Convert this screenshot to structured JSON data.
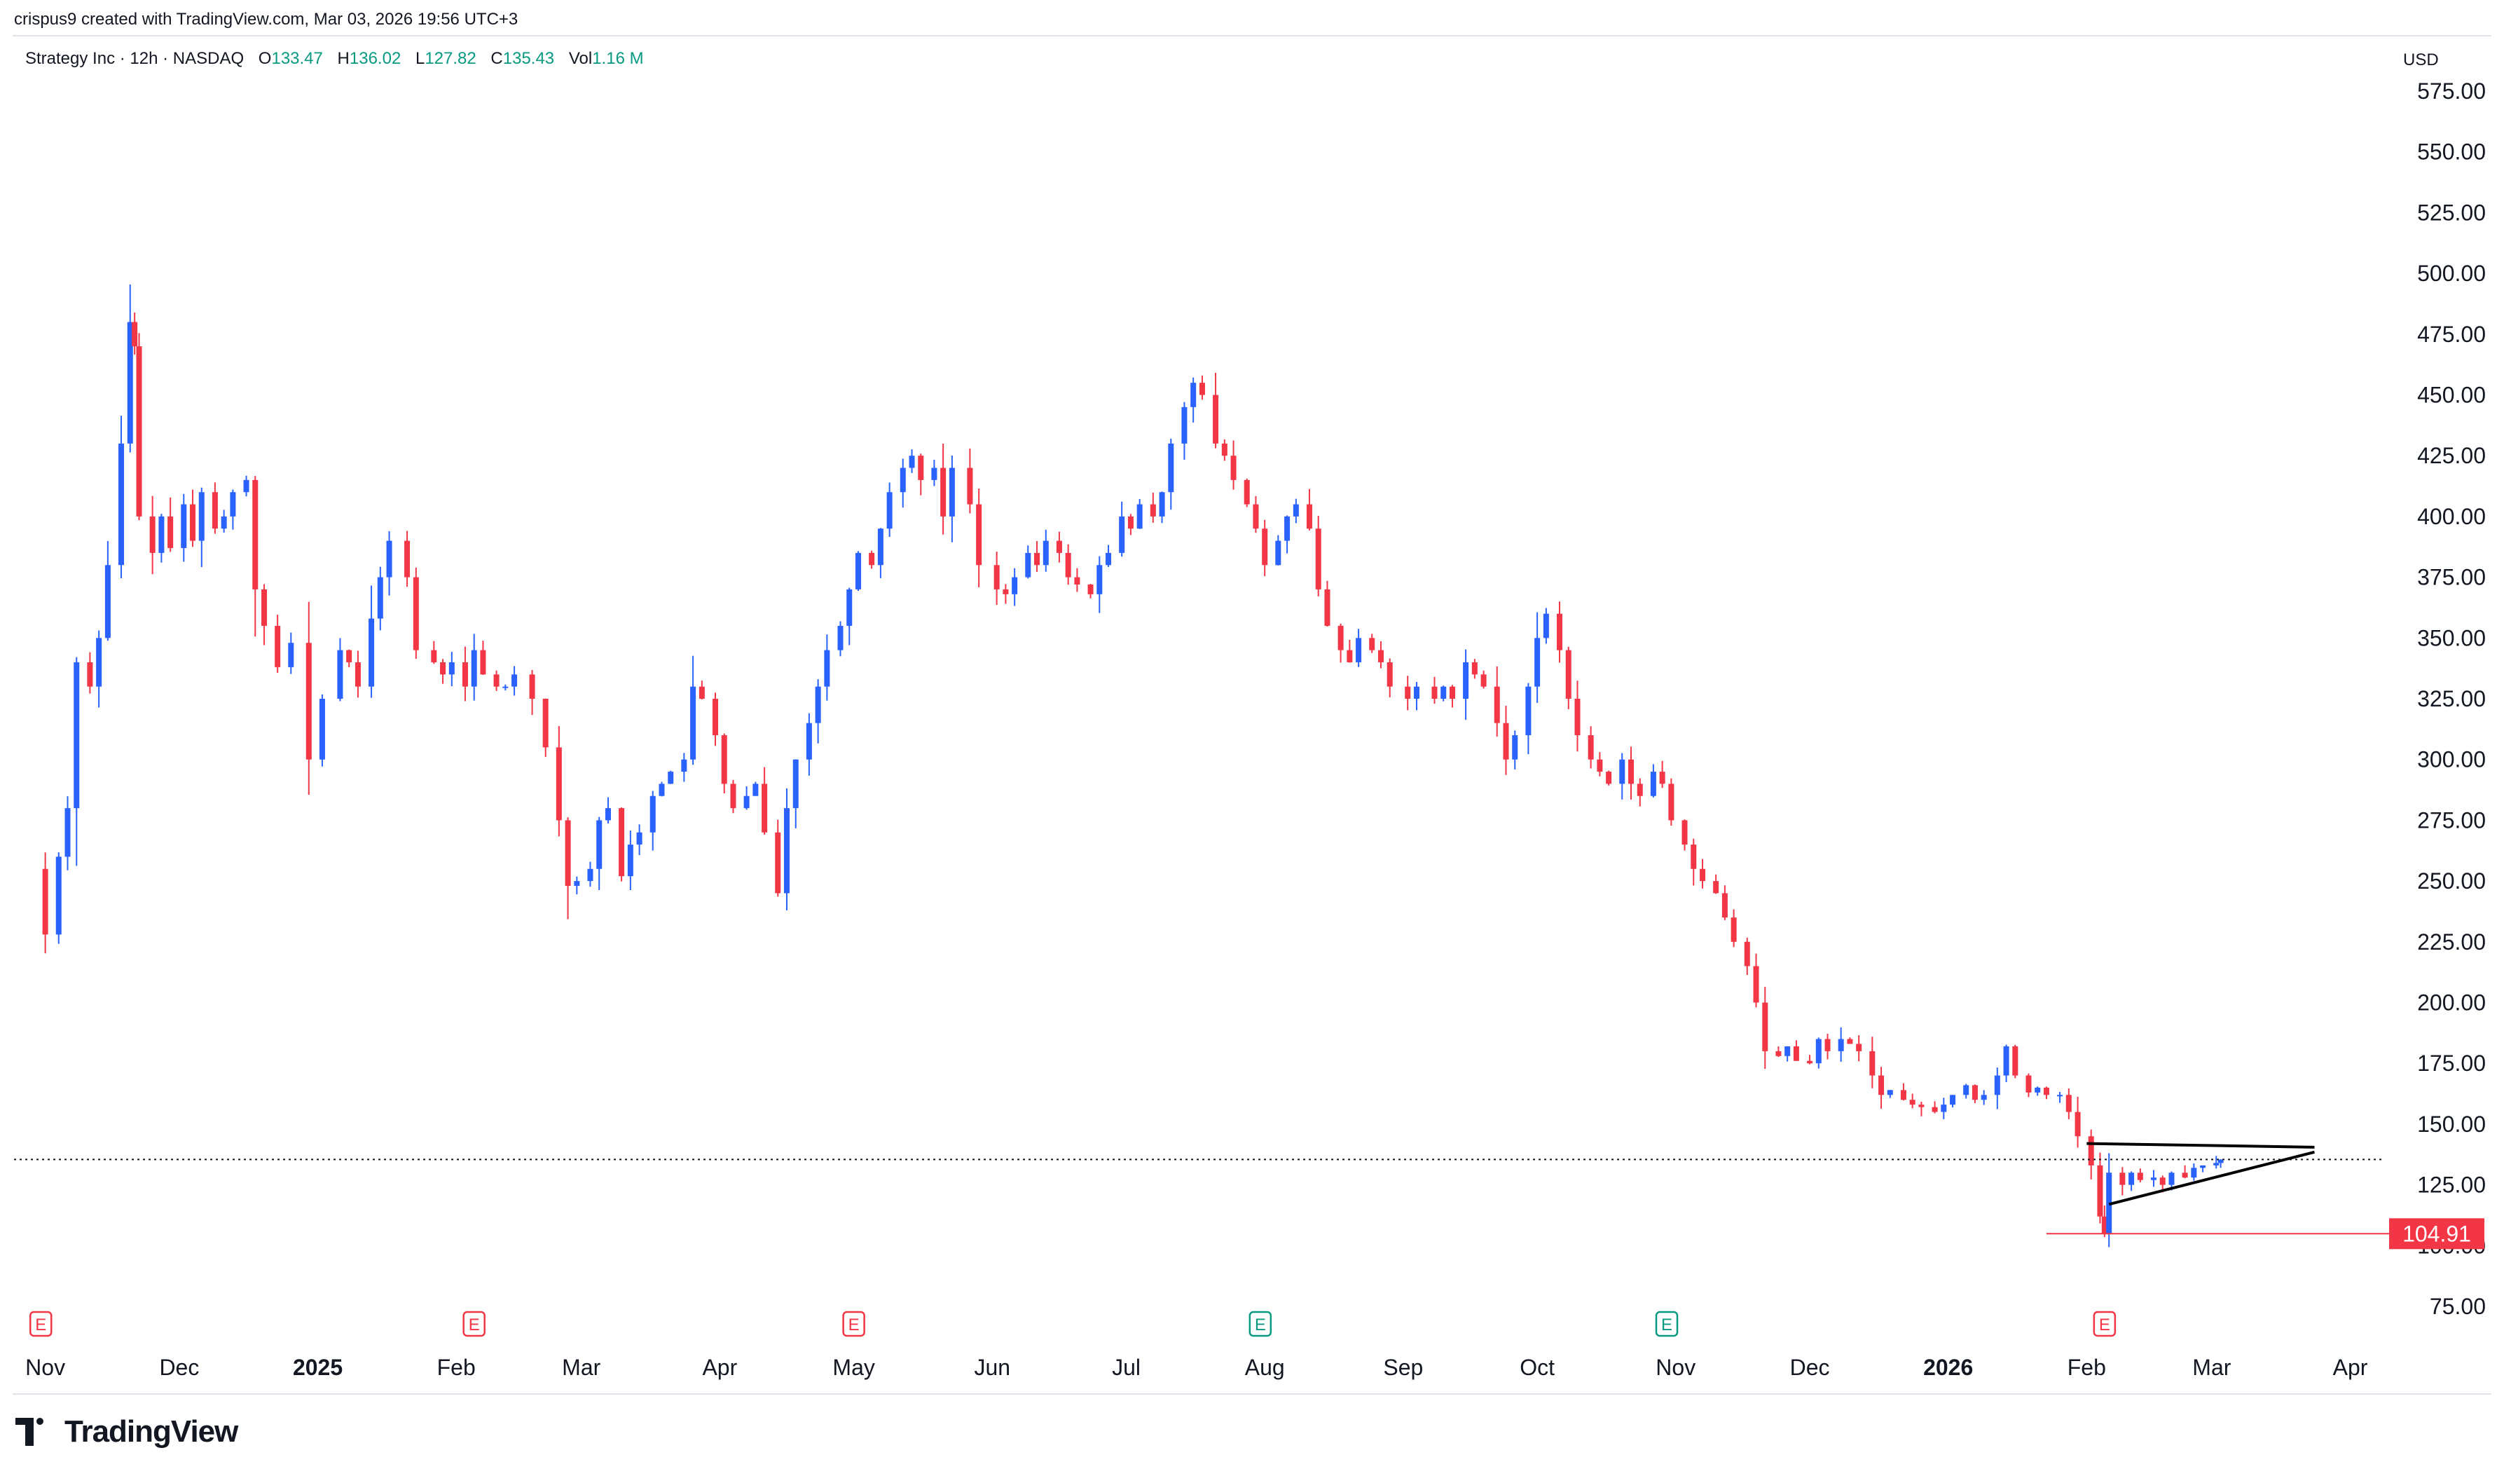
{
  "credit": "crispus9 created with TradingView.com, Mar 03, 2026 19:56 UTC+3",
  "legend": {
    "symbol": "Strategy Inc · 12h · NASDAQ",
    "o_label": "O",
    "o_value": "133.47",
    "h_label": "H",
    "h_value": "136.02",
    "l_label": "L",
    "l_value": "127.82",
    "c_label": "C",
    "c_value": "135.43",
    "vol_label": "Vol",
    "vol_value": "1.16 M"
  },
  "currency": "USD",
  "brand": "TradingView",
  "colors": {
    "up": "#2962ff",
    "down": "#f23645",
    "price_line": "#131722",
    "support": "#f23645"
  },
  "chart_data": {
    "type": "candlestick",
    "ylim": [
      65,
      585
    ],
    "y_ticks": [
      "575.00",
      "550.00",
      "525.00",
      "500.00",
      "475.00",
      "450.00",
      "425.00",
      "400.00",
      "375.00",
      "350.00",
      "325.00",
      "300.00",
      "275.00",
      "250.00",
      "225.00",
      "200.00",
      "175.00",
      "150.00",
      "125.00",
      "100.00",
      "75.00"
    ],
    "x_ticks": [
      {
        "label": "Nov",
        "date": "2024-11-01",
        "bold": false
      },
      {
        "label": "Dec",
        "date": "2024-12-01",
        "bold": false
      },
      {
        "label": "2025",
        "date": "2025-01-01",
        "bold": true
      },
      {
        "label": "Feb",
        "date": "2025-02-01",
        "bold": false
      },
      {
        "label": "Mar",
        "date": "2025-03-01",
        "bold": false
      },
      {
        "label": "Apr",
        "date": "2025-04-01",
        "bold": false
      },
      {
        "label": "May",
        "date": "2025-05-01",
        "bold": false
      },
      {
        "label": "Jun",
        "date": "2025-06-01",
        "bold": false
      },
      {
        "label": "Jul",
        "date": "2025-07-01",
        "bold": false
      },
      {
        "label": "Aug",
        "date": "2025-08-01",
        "bold": false
      },
      {
        "label": "Sep",
        "date": "2025-09-01",
        "bold": false
      },
      {
        "label": "Oct",
        "date": "2025-10-01",
        "bold": false
      },
      {
        "label": "Nov",
        "date": "2025-11-01",
        "bold": false
      },
      {
        "label": "Dec",
        "date": "2025-12-01",
        "bold": false
      },
      {
        "label": "2026",
        "date": "2026-01-01",
        "bold": true
      },
      {
        "label": "Feb",
        "date": "2026-02-01",
        "bold": false
      },
      {
        "label": "Mar",
        "date": "2026-03-01",
        "bold": false
      },
      {
        "label": "Apr",
        "date": "2026-04-01",
        "bold": false
      }
    ],
    "close_series": [
      [
        "2024-10-28",
        255
      ],
      [
        "2024-11-01",
        228
      ],
      [
        "2024-11-04",
        260
      ],
      [
        "2024-11-06",
        280
      ],
      [
        "2024-11-08",
        340
      ],
      [
        "2024-11-11",
        330
      ],
      [
        "2024-11-13",
        350
      ],
      [
        "2024-11-15",
        380
      ],
      [
        "2024-11-18",
        430
      ],
      [
        "2024-11-20",
        480
      ],
      [
        "2024-11-21",
        470
      ],
      [
        "2024-11-22",
        400
      ],
      [
        "2024-11-25",
        385
      ],
      [
        "2024-11-27",
        400
      ],
      [
        "2024-11-29",
        387
      ],
      [
        "2024-12-02",
        405
      ],
      [
        "2024-12-04",
        390
      ],
      [
        "2024-12-06",
        410
      ],
      [
        "2024-12-09",
        395
      ],
      [
        "2024-12-11",
        400
      ],
      [
        "2024-12-13",
        410
      ],
      [
        "2024-12-16",
        415
      ],
      [
        "2024-12-18",
        370
      ],
      [
        "2024-12-20",
        355
      ],
      [
        "2024-12-23",
        338
      ],
      [
        "2024-12-26",
        348
      ],
      [
        "2024-12-30",
        300
      ],
      [
        "2025-01-02",
        325
      ],
      [
        "2025-01-06",
        345
      ],
      [
        "2025-01-08",
        340
      ],
      [
        "2025-01-10",
        330
      ],
      [
        "2025-01-13",
        358
      ],
      [
        "2025-01-15",
        375
      ],
      [
        "2025-01-17",
        390
      ],
      [
        "2025-01-21",
        375
      ],
      [
        "2025-01-23",
        345
      ],
      [
        "2025-01-27",
        340
      ],
      [
        "2025-01-29",
        335
      ],
      [
        "2025-01-31",
        340
      ],
      [
        "2025-02-03",
        330
      ],
      [
        "2025-02-05",
        345
      ],
      [
        "2025-02-07",
        335
      ],
      [
        "2025-02-10",
        330
      ],
      [
        "2025-02-12",
        330
      ],
      [
        "2025-02-14",
        335
      ],
      [
        "2025-02-18",
        325
      ],
      [
        "2025-02-21",
        305
      ],
      [
        "2025-02-24",
        275
      ],
      [
        "2025-02-26",
        248
      ],
      [
        "2025-02-28",
        250
      ],
      [
        "2025-03-03",
        255
      ],
      [
        "2025-03-05",
        275
      ],
      [
        "2025-03-07",
        280
      ],
      [
        "2025-03-10",
        252
      ],
      [
        "2025-03-12",
        265
      ],
      [
        "2025-03-14",
        270
      ],
      [
        "2025-03-17",
        285
      ],
      [
        "2025-03-19",
        290
      ],
      [
        "2025-03-21",
        295
      ],
      [
        "2025-03-24",
        300
      ],
      [
        "2025-03-26",
        330
      ],
      [
        "2025-03-28",
        325
      ],
      [
        "2025-03-31",
        310
      ],
      [
        "2025-04-02",
        290
      ],
      [
        "2025-04-04",
        280
      ],
      [
        "2025-04-07",
        285
      ],
      [
        "2025-04-09",
        290
      ],
      [
        "2025-04-11",
        270
      ],
      [
        "2025-04-14",
        245
      ],
      [
        "2025-04-16",
        280
      ],
      [
        "2025-04-18",
        300
      ],
      [
        "2025-04-21",
        315
      ],
      [
        "2025-04-23",
        330
      ],
      [
        "2025-04-25",
        345
      ],
      [
        "2025-04-28",
        355
      ],
      [
        "2025-04-30",
        370
      ],
      [
        "2025-05-02",
        385
      ],
      [
        "2025-05-05",
        380
      ],
      [
        "2025-05-07",
        395
      ],
      [
        "2025-05-09",
        410
      ],
      [
        "2025-05-12",
        420
      ],
      [
        "2025-05-14",
        425
      ],
      [
        "2025-05-16",
        415
      ],
      [
        "2025-05-19",
        420
      ],
      [
        "2025-05-21",
        400
      ],
      [
        "2025-05-23",
        420
      ],
      [
        "2025-05-27",
        405
      ],
      [
        "2025-05-29",
        380
      ],
      [
        "2025-06-02",
        370
      ],
      [
        "2025-06-04",
        368
      ],
      [
        "2025-06-06",
        375
      ],
      [
        "2025-06-09",
        385
      ],
      [
        "2025-06-11",
        380
      ],
      [
        "2025-06-13",
        390
      ],
      [
        "2025-06-16",
        385
      ],
      [
        "2025-06-18",
        375
      ],
      [
        "2025-06-20",
        372
      ],
      [
        "2025-06-23",
        368
      ],
      [
        "2025-06-25",
        380
      ],
      [
        "2025-06-27",
        385
      ],
      [
        "2025-06-30",
        400
      ],
      [
        "2025-07-02",
        395
      ],
      [
        "2025-07-04",
        405
      ],
      [
        "2025-07-07",
        400
      ],
      [
        "2025-07-09",
        410
      ],
      [
        "2025-07-11",
        430
      ],
      [
        "2025-07-14",
        445
      ],
      [
        "2025-07-16",
        455
      ],
      [
        "2025-07-18",
        450
      ],
      [
        "2025-07-21",
        430
      ],
      [
        "2025-07-23",
        425
      ],
      [
        "2025-07-25",
        415
      ],
      [
        "2025-07-28",
        405
      ],
      [
        "2025-07-30",
        395
      ],
      [
        "2025-08-01",
        380
      ],
      [
        "2025-08-04",
        390
      ],
      [
        "2025-08-06",
        400
      ],
      [
        "2025-08-08",
        405
      ],
      [
        "2025-08-11",
        395
      ],
      [
        "2025-08-13",
        370
      ],
      [
        "2025-08-15",
        355
      ],
      [
        "2025-08-18",
        345
      ],
      [
        "2025-08-20",
        340
      ],
      [
        "2025-08-22",
        350
      ],
      [
        "2025-08-25",
        345
      ],
      [
        "2025-08-27",
        340
      ],
      [
        "2025-08-29",
        330
      ],
      [
        "2025-09-02",
        325
      ],
      [
        "2025-09-04",
        330
      ],
      [
        "2025-09-08",
        325
      ],
      [
        "2025-09-10",
        330
      ],
      [
        "2025-09-12",
        325
      ],
      [
        "2025-09-15",
        340
      ],
      [
        "2025-09-17",
        335
      ],
      [
        "2025-09-19",
        330
      ],
      [
        "2025-09-22",
        315
      ],
      [
        "2025-09-24",
        300
      ],
      [
        "2025-09-26",
        310
      ],
      [
        "2025-09-29",
        330
      ],
      [
        "2025-10-01",
        350
      ],
      [
        "2025-10-03",
        360
      ],
      [
        "2025-10-06",
        345
      ],
      [
        "2025-10-08",
        325
      ],
      [
        "2025-10-10",
        310
      ],
      [
        "2025-10-13",
        300
      ],
      [
        "2025-10-15",
        295
      ],
      [
        "2025-10-17",
        290
      ],
      [
        "2025-10-20",
        300
      ],
      [
        "2025-10-22",
        290
      ],
      [
        "2025-10-24",
        285
      ],
      [
        "2025-10-27",
        295
      ],
      [
        "2025-10-29",
        290
      ],
      [
        "2025-10-31",
        275
      ],
      [
        "2025-11-03",
        265
      ],
      [
        "2025-11-05",
        255
      ],
      [
        "2025-11-07",
        250
      ],
      [
        "2025-11-10",
        245
      ],
      [
        "2025-11-12",
        235
      ],
      [
        "2025-11-14",
        225
      ],
      [
        "2025-11-17",
        215
      ],
      [
        "2025-11-19",
        200
      ],
      [
        "2025-11-21",
        180
      ],
      [
        "2025-11-24",
        178
      ],
      [
        "2025-11-26",
        182
      ],
      [
        "2025-11-28",
        176
      ],
      [
        "2025-12-01",
        175
      ],
      [
        "2025-12-03",
        185
      ],
      [
        "2025-12-05",
        180
      ],
      [
        "2025-12-08",
        185
      ],
      [
        "2025-12-10",
        183
      ],
      [
        "2025-12-12",
        180
      ],
      [
        "2025-12-15",
        170
      ],
      [
        "2025-12-17",
        162
      ],
      [
        "2025-12-19",
        164
      ],
      [
        "2025-12-22",
        160
      ],
      [
        "2025-12-24",
        158
      ],
      [
        "2025-12-26",
        157
      ],
      [
        "2025-12-29",
        155
      ],
      [
        "2025-12-31",
        158
      ],
      [
        "2026-01-02",
        162
      ],
      [
        "2026-01-05",
        166
      ],
      [
        "2026-01-07",
        160
      ],
      [
        "2026-01-09",
        162
      ],
      [
        "2026-01-12",
        170
      ],
      [
        "2026-01-14",
        182
      ],
      [
        "2026-01-16",
        170
      ],
      [
        "2026-01-19",
        163
      ],
      [
        "2026-01-21",
        165
      ],
      [
        "2026-01-23",
        162
      ],
      [
        "2026-01-26",
        162
      ],
      [
        "2026-01-28",
        155
      ],
      [
        "2026-01-30",
        145
      ],
      [
        "2026-02-02",
        133
      ],
      [
        "2026-02-04",
        112
      ],
      [
        "2026-02-05",
        105
      ],
      [
        "2026-02-06",
        130
      ],
      [
        "2026-02-09",
        125
      ],
      [
        "2026-02-11",
        130
      ],
      [
        "2026-02-13",
        127
      ],
      [
        "2026-02-16",
        128
      ],
      [
        "2026-02-18",
        125
      ],
      [
        "2026-02-20",
        130
      ],
      [
        "2026-02-23",
        128
      ],
      [
        "2026-02-25",
        132
      ],
      [
        "2026-02-27",
        133
      ],
      [
        "2026-03-02",
        134
      ],
      [
        "2026-03-03",
        135.43
      ]
    ],
    "current_price": 135.43,
    "support_label": "104.91",
    "support_value": 104.91,
    "triangle": {
      "upper": [
        [
          "2026-02-01",
          142
        ],
        [
          "2026-03-24",
          140.5
        ]
      ],
      "lower": [
        [
          "2026-02-06",
          117
        ],
        [
          "2026-03-24",
          138.5
        ]
      ]
    },
    "earnings_markers": [
      {
        "label": "E",
        "date": "2024-10-31",
        "color": "#f23645"
      },
      {
        "label": "E",
        "date": "2025-02-05",
        "color": "#f23645"
      },
      {
        "label": "E",
        "date": "2025-05-01",
        "color": "#f23645"
      },
      {
        "label": "E",
        "date": "2025-07-31",
        "color": "#089981"
      },
      {
        "label": "E",
        "date": "2025-10-30",
        "color": "#089981"
      },
      {
        "label": "E",
        "date": "2026-02-05",
        "color": "#f23645"
      }
    ]
  }
}
